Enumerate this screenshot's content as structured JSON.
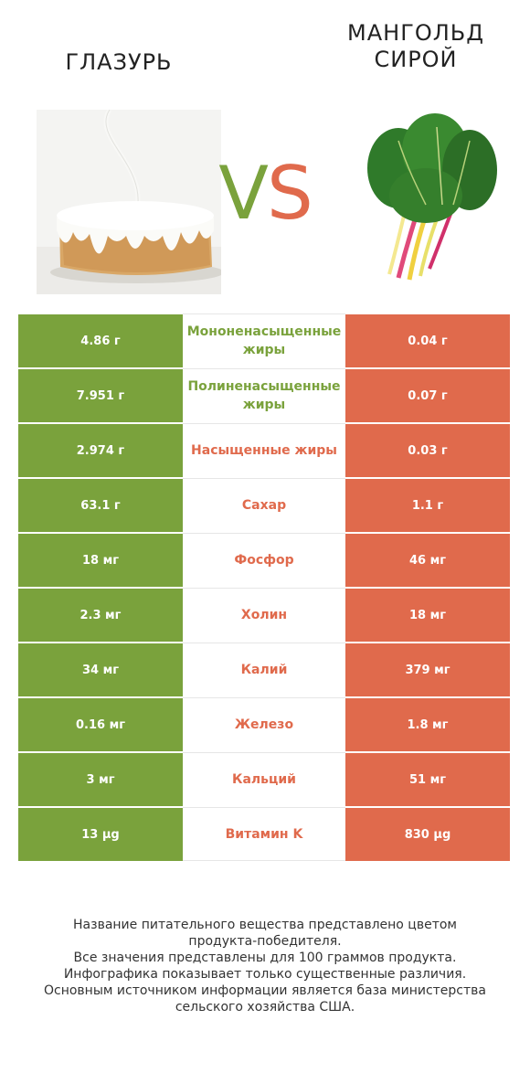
{
  "header": {
    "left_title": "ГЛАЗУРЬ",
    "right_title_line1": "МАНГОЛЬД",
    "right_title_line2": "СИРОЙ",
    "vs_v": "V",
    "vs_s": "S"
  },
  "colors": {
    "winner_left": "#7aa23c",
    "winner_right": "#e06a4c"
  },
  "rows": [
    {
      "left": "4.86 г",
      "nutrient": "Мононенасыщенные жиры",
      "right": "0.04 г",
      "winner": "left"
    },
    {
      "left": "7.951 г",
      "nutrient": "Полиненасыщенные жиры",
      "right": "0.07 г",
      "winner": "left"
    },
    {
      "left": "2.974 г",
      "nutrient": "Насыщенные жиры",
      "right": "0.03 г",
      "winner": "right"
    },
    {
      "left": "63.1 г",
      "nutrient": "Сахар",
      "right": "1.1 г",
      "winner": "right"
    },
    {
      "left": "18 мг",
      "nutrient": "Фосфор",
      "right": "46 мг",
      "winner": "right"
    },
    {
      "left": "2.3 мг",
      "nutrient": "Холин",
      "right": "18 мг",
      "winner": "right"
    },
    {
      "left": "34 мг",
      "nutrient": "Калий",
      "right": "379 мг",
      "winner": "right"
    },
    {
      "left": "0.16 мг",
      "nutrient": "Железо",
      "right": "1.8 мг",
      "winner": "right"
    },
    {
      "left": "3 мг",
      "nutrient": "Кальций",
      "right": "51 мг",
      "winner": "right"
    },
    {
      "left": "13 µg",
      "nutrient": "Витамин K",
      "right": "830 µg",
      "winner": "right"
    }
  ],
  "footer": {
    "line1": "Название питательного вещества представлено цветом",
    "line2": "продукта-победителя.",
    "line3": "Все значения представлены для 100 граммов продукта.",
    "line4": "Инфографика показывает только существенные различия.",
    "line5": "Основным источником информации является база министерства",
    "line6": "сельского хозяйства США."
  }
}
